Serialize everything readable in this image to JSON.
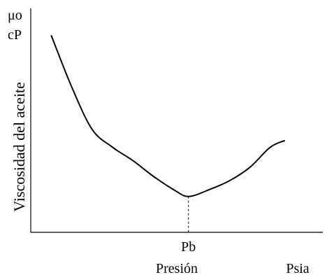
{
  "chart_data": {
    "type": "line",
    "title": "",
    "ylabel": "Viscosidad del aceite",
    "yunit_top": "μo",
    "yunit_bottom": "cP",
    "xlabel": "Presión",
    "xunit": "Psia",
    "xlim": [
      0,
      1
    ],
    "ylim": [
      0,
      1
    ],
    "grid": false,
    "ticks": [
      {
        "label": "Pb",
        "x": 0.54
      }
    ],
    "series": [
      {
        "x": [
          0.07,
          0.14,
          0.21,
          0.28,
          0.35,
          0.42,
          0.49,
          0.54,
          0.61,
          0.68,
          0.75,
          0.82,
          0.87
        ],
        "y": [
          0.88,
          0.65,
          0.46,
          0.38,
          0.32,
          0.25,
          0.19,
          0.16,
          0.19,
          0.23,
          0.29,
          0.38,
          0.41
        ]
      }
    ],
    "annotations": [
      {
        "type": "dashed-drop",
        "x": 0.54,
        "to": "Pb"
      }
    ]
  }
}
